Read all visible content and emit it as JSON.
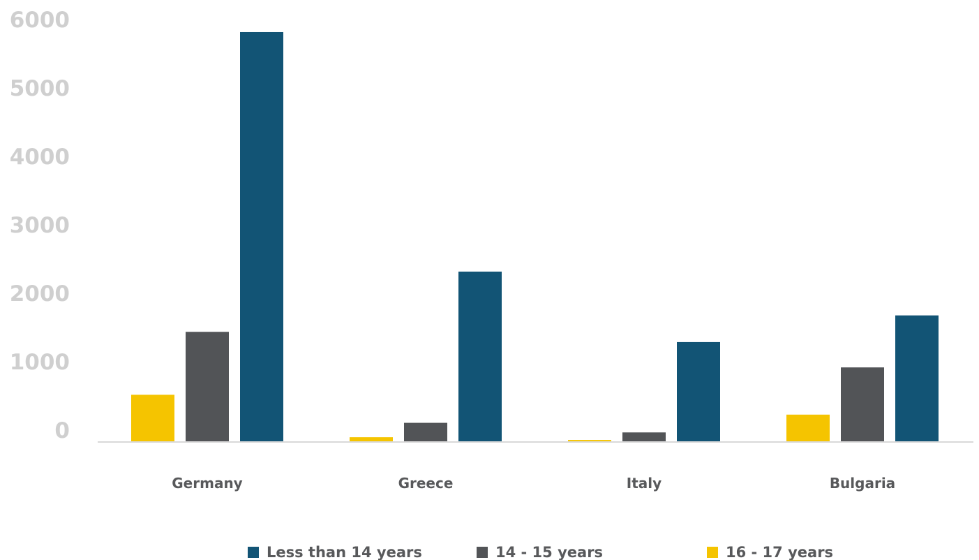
{
  "chart_data": {
    "type": "bar",
    "title": "",
    "xlabel": "",
    "ylabel": "",
    "categories": [
      "Germany",
      "Greece",
      "Italy",
      "Bulgaria"
    ],
    "series": [
      {
        "name": "16 - 17 years",
        "color": "#f5c400",
        "values": [
          690,
          70,
          30,
          400
        ]
      },
      {
        "name": "14 - 15 years",
        "color": "#525457",
        "values": [
          1610,
          280,
          140,
          1090
        ]
      },
      {
        "name": "Less than 14 years",
        "color": "#125475",
        "values": [
          5990,
          2490,
          1460,
          1850
        ]
      }
    ],
    "legend_order": [
      "Less than 14 years",
      "14 - 15 years",
      "16 - 17 years"
    ],
    "yticks": [
      "0",
      "1000",
      "2000",
      "3000",
      "4000",
      "5000",
      "6000"
    ],
    "ylim": [
      0,
      6000
    ],
    "grid": false,
    "legend_position": "bottom",
    "colors": {
      "axis": "#d9d9d9",
      "tick_label": "#cfcfcf",
      "category_label": "#58595b"
    }
  }
}
